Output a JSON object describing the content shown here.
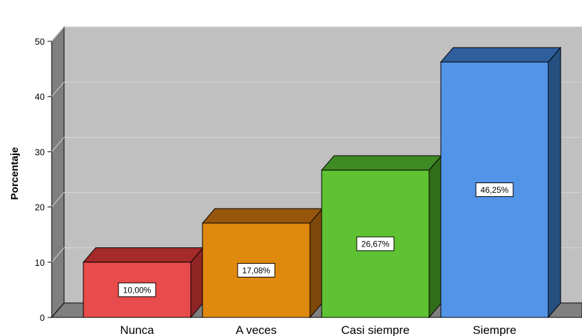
{
  "chart_data": {
    "type": "bar",
    "title": "",
    "xlabel": "",
    "ylabel": "Porcentaje",
    "ylim": [
      0,
      50
    ],
    "yticks": [
      0,
      10,
      20,
      30,
      40,
      50
    ],
    "grid": true,
    "three_d": true,
    "categories": [
      "Nunca",
      "A veces",
      "Casi siempre",
      "Siempre"
    ],
    "values": [
      10.0,
      17.08,
      26.67,
      46.25
    ],
    "data_labels": [
      "10,00%",
      "17,08%",
      "26,67%",
      "46,25%"
    ],
    "colors": {
      "fronts": [
        "#e84b4b",
        "#e0890f",
        "#5fc233",
        "#5294e8"
      ],
      "tops": [
        "#a52a2a",
        "#98560c",
        "#3e8a23",
        "#2f5e9c"
      ],
      "sides": [
        "#8f2424",
        "#7d480a",
        "#326f1c",
        "#25507f"
      ],
      "wall": "#c0c0c0",
      "left_wall": "#7f7f7f",
      "floor": "#808080",
      "gridline": "#d6d6d6"
    }
  }
}
